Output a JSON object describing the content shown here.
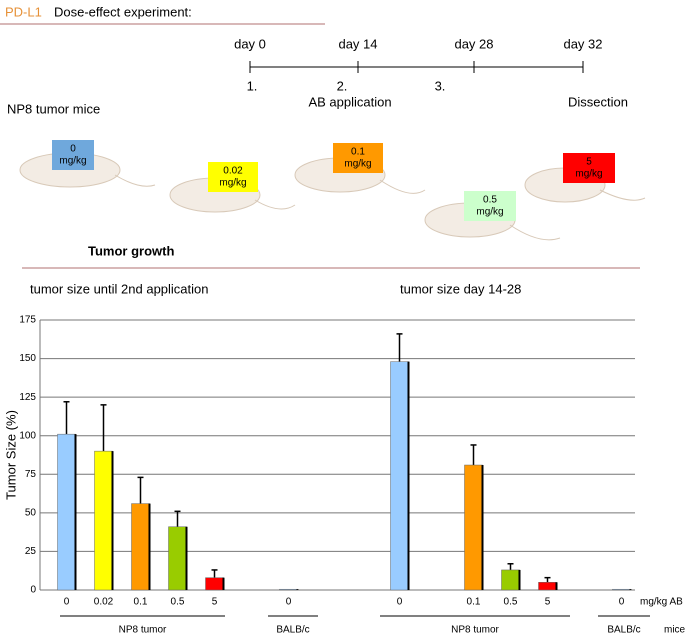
{
  "header": {
    "tag": "PD-L1",
    "title": "Dose-effect experiment:"
  },
  "timeline": {
    "days": [
      "day 0",
      "day 14",
      "day 28",
      "day 32"
    ],
    "steps": [
      "1.",
      "2.",
      "3."
    ],
    "application": "AB application",
    "dissection": "Dissection",
    "mice": "NP8 tumor mice"
  },
  "doses": [
    {
      "value": "0",
      "unit": "mg/kg",
      "color": "#6fa8dc"
    },
    {
      "value": "0.02",
      "unit": "mg/kg",
      "color": "#ffff00"
    },
    {
      "value": "0.1",
      "unit": "mg/kg",
      "color": "#ff9900"
    },
    {
      "value": "0.5",
      "unit": "mg/kg",
      "color": "#ccffcc"
    },
    {
      "value": "5",
      "unit": "mg/kg",
      "color": "#ff0000"
    }
  ],
  "section": "Tumor growth",
  "subtitles": [
    "tumor size until 2nd application",
    "tumor size day 14-28"
  ],
  "chart_data": {
    "type": "bar",
    "y_label": "Tumor Size (%)",
    "categories": [
      "0",
      "0.02",
      "0.1",
      "0.5",
      "5",
      null,
      "0",
      null,
      null,
      "0",
      null,
      "0.1",
      "0.5",
      "5",
      null,
      "0"
    ],
    "values": [
      101,
      90,
      56,
      41,
      8,
      null,
      0.5,
      null,
      null,
      148,
      null,
      81,
      13,
      5,
      null,
      0.5
    ],
    "errors": [
      21,
      30,
      17,
      10,
      5,
      null,
      0,
      null,
      null,
      18,
      null,
      13,
      4,
      3,
      null,
      0
    ],
    "colors": [
      "#99ccff",
      "#ffff00",
      "#ff9900",
      "#99cc00",
      "#ff0000",
      null,
      "#99ccff",
      null,
      null,
      "#99ccff",
      null,
      "#ff9900",
      "#99cc00",
      "#ff0000",
      null,
      "#99ccff"
    ],
    "ylim": [
      0,
      175
    ],
    "yticks": [
      0,
      25,
      50,
      75,
      100,
      125,
      150,
      175
    ],
    "grid": true,
    "x_unit_label": "mg/kg AB",
    "group_axis_label": "mice",
    "groups": [
      "NP8 tumor",
      "BALB/c",
      "NP8 tumor",
      "BALB/c"
    ]
  }
}
